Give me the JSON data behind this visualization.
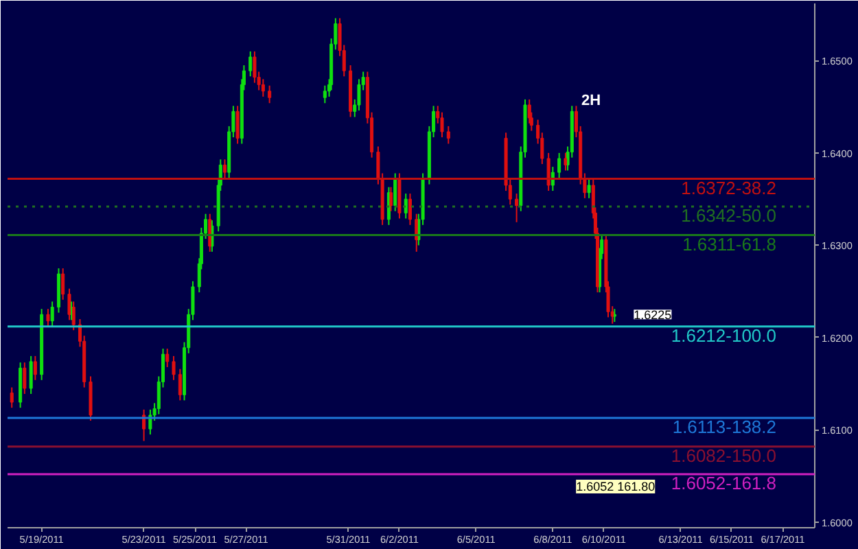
{
  "chart_data": {
    "type": "candlestick",
    "title": "2H",
    "x": [
      "2011-05-17T20:00",
      "2011-05-18T04:00",
      "2011-05-18T08:00",
      "2011-05-18T14:00",
      "2011-05-18T18:00",
      "2011-05-19T00:00",
      "2011-05-19T06:00",
      "2011-05-19T10:00",
      "2011-05-19T16:00",
      "2011-05-19T20:00",
      "2011-05-20T02:00",
      "2011-05-20T04:00",
      "2011-05-20T06:00",
      "2011-05-20T12:00",
      "2011-05-20T16:00",
      "2011-05-20T22:00",
      "2011-05-23T00:00",
      "2011-05-23T06:00",
      "2011-05-23T10:00",
      "2011-05-23T14:00",
      "2011-05-23T18:00",
      "2011-05-23T22:00",
      "2011-05-24T04:00",
      "2011-05-24T10:00",
      "2011-05-24T14:00",
      "2011-05-24T18:00",
      "2011-05-24T22:00",
      "2011-05-25T04:00",
      "2011-05-25T06:00",
      "2011-05-25T10:00",
      "2011-05-25T14:00",
      "2011-05-25T16:00",
      "2011-05-25T22:00",
      "2011-05-26T00:00",
      "2011-05-26T04:00",
      "2011-05-26T08:00",
      "2011-05-26T12:00",
      "2011-05-26T16:00",
      "2011-05-26T20:00",
      "2011-05-26T22:00",
      "2011-05-27T04:00",
      "2011-05-27T08:00",
      "2011-05-27T12:00",
      "2011-05-27T16:00",
      "2011-05-27T22:00",
      "2011-05-30T02:00",
      "2011-05-30T06:00",
      "2011-05-30T08:00",
      "2011-05-30T12:00",
      "2011-05-30T16:00",
      "2011-05-30T20:00",
      "2011-05-31T02:00",
      "2011-05-31T06:00",
      "2011-05-31T10:00",
      "2011-05-31T14:00",
      "2011-05-31T18:00",
      "2011-05-31T22:00",
      "2011-06-01T04:00",
      "2011-06-01T08:00",
      "2011-06-01T14:00",
      "2011-06-01T16:00",
      "2011-06-01T20:00",
      "2011-06-02T00:00",
      "2011-06-02T06:00",
      "2011-06-02T10:00",
      "2011-06-02T16:00",
      "2011-06-02T18:00",
      "2011-06-02T22:00",
      "2011-06-03T04:00",
      "2011-06-03T08:00",
      "2011-06-03T12:00",
      "2011-06-03T16:00",
      "2011-06-03T22:00",
      "2011-06-06T04:00",
      "2011-06-06T08:00",
      "2011-06-06T14:00",
      "2011-06-06T18:00",
      "2011-06-06T22:00",
      "2011-06-07T02:00",
      "2011-06-07T04:00",
      "2011-06-07T10:00",
      "2011-06-07T14:00",
      "2011-06-07T20:00",
      "2011-06-08T00:00",
      "2011-06-08T06:00",
      "2011-06-08T12:00",
      "2011-06-08T14:00",
      "2011-06-08T18:00",
      "2011-06-08T22:00",
      "2011-06-09T02:00",
      "2011-06-09T06:00",
      "2011-06-09T10:00",
      "2011-06-09T14:00",
      "2011-06-09T16:00",
      "2011-06-09T18:00",
      "2011-06-09T20:00",
      "2011-06-09T22:00",
      "2011-06-10T02:00",
      "2011-06-10T04:00",
      "2011-06-10T08:00",
      "2011-06-10T10:00"
    ],
    "ohlc": [
      [
        1.614,
        1.6146,
        1.6124,
        1.613
      ],
      [
        1.613,
        1.6173,
        1.6124,
        1.6167
      ],
      [
        1.6167,
        1.6173,
        1.6139,
        1.6145
      ],
      [
        1.6145,
        1.618,
        1.6139,
        1.6174
      ],
      [
        1.6174,
        1.618,
        1.6154,
        1.616
      ],
      [
        1.616,
        1.6231,
        1.6154,
        1.6225
      ],
      [
        1.6225,
        1.6231,
        1.6212,
        1.6218
      ],
      [
        1.6218,
        1.6239,
        1.6212,
        1.6233
      ],
      [
        1.6233,
        1.6275,
        1.6227,
        1.6269
      ],
      [
        1.6269,
        1.6275,
        1.6241,
        1.6247
      ],
      [
        1.6247,
        1.6253,
        1.6219,
        1.6225
      ],
      [
        1.6225,
        1.6239,
        1.6219,
        1.6233
      ],
      [
        1.6233,
        1.6239,
        1.6208,
        1.6214
      ],
      [
        1.6214,
        1.622,
        1.619,
        1.6196
      ],
      [
        1.6196,
        1.6202,
        1.6146,
        1.6152
      ],
      [
        1.6152,
        1.6158,
        1.611,
        1.6116
      ],
      [
        1.6116,
        1.6122,
        1.6088,
        1.6101
      ],
      [
        1.6101,
        1.6122,
        1.6095,
        1.6116
      ],
      [
        1.6116,
        1.6129,
        1.611,
        1.6123
      ],
      [
        1.6123,
        1.6158,
        1.6117,
        1.6152
      ],
      [
        1.6152,
        1.6188,
        1.6146,
        1.6182
      ],
      [
        1.6182,
        1.6188,
        1.6168,
        1.6174
      ],
      [
        1.6174,
        1.618,
        1.6154,
        1.616
      ],
      [
        1.616,
        1.6166,
        1.6132,
        1.6138
      ],
      [
        1.6138,
        1.6195,
        1.6132,
        1.6189
      ],
      [
        1.6189,
        1.6231,
        1.6183,
        1.6225
      ],
      [
        1.6225,
        1.6261,
        1.6219,
        1.6255
      ],
      [
        1.6255,
        1.6286,
        1.6249,
        1.628
      ],
      [
        1.628,
        1.6319,
        1.6274,
        1.6313
      ],
      [
        1.6313,
        1.6334,
        1.6307,
        1.6328
      ],
      [
        1.6328,
        1.6334,
        1.6293,
        1.6299
      ],
      [
        1.6299,
        1.6327,
        1.6293,
        1.6321
      ],
      [
        1.6321,
        1.6371,
        1.6315,
        1.6365
      ],
      [
        1.6365,
        1.6393,
        1.6359,
        1.6387
      ],
      [
        1.6387,
        1.6393,
        1.6373,
        1.6379
      ],
      [
        1.6379,
        1.6429,
        1.6373,
        1.6423
      ],
      [
        1.6423,
        1.6451,
        1.6417,
        1.6445
      ],
      [
        1.6445,
        1.6451,
        1.641,
        1.6416
      ],
      [
        1.6416,
        1.648,
        1.641,
        1.6474
      ],
      [
        1.6474,
        1.6495,
        1.6468,
        1.6489
      ],
      [
        1.6489,
        1.651,
        1.6483,
        1.6504
      ],
      [
        1.6504,
        1.651,
        1.6476,
        1.6482
      ],
      [
        1.6482,
        1.6488,
        1.6468,
        1.6474
      ],
      [
        1.6474,
        1.648,
        1.6461,
        1.6467
      ],
      [
        1.6467,
        1.6473,
        1.6454,
        1.646
      ],
      [
        1.646,
        1.6473,
        1.6454,
        1.6467
      ],
      [
        1.6467,
        1.648,
        1.6461,
        1.6474
      ],
      [
        1.6474,
        1.6524,
        1.6468,
        1.6518
      ],
      [
        1.6518,
        1.6546,
        1.6512,
        1.654
      ],
      [
        1.654,
        1.6546,
        1.6505,
        1.6511
      ],
      [
        1.6511,
        1.6517,
        1.6483,
        1.6489
      ],
      [
        1.6489,
        1.6495,
        1.6439,
        1.6445
      ],
      [
        1.6445,
        1.6458,
        1.6439,
        1.6452
      ],
      [
        1.6452,
        1.648,
        1.6446,
        1.6474
      ],
      [
        1.6474,
        1.6488,
        1.6468,
        1.6482
      ],
      [
        1.6482,
        1.6488,
        1.6432,
        1.6438
      ],
      [
        1.6438,
        1.6444,
        1.6395,
        1.6401
      ],
      [
        1.6401,
        1.6407,
        1.6366,
        1.6372
      ],
      [
        1.6372,
        1.6378,
        1.6322,
        1.6328
      ],
      [
        1.6328,
        1.6363,
        1.6322,
        1.6357
      ],
      [
        1.6357,
        1.6363,
        1.6337,
        1.6343
      ],
      [
        1.6343,
        1.6378,
        1.6337,
        1.6372
      ],
      [
        1.6372,
        1.6378,
        1.6329,
        1.6335
      ],
      [
        1.6335,
        1.6356,
        1.6329,
        1.635
      ],
      [
        1.635,
        1.6356,
        1.6322,
        1.6328
      ],
      [
        1.6328,
        1.6334,
        1.6293,
        1.6306
      ],
      [
        1.6306,
        1.6334,
        1.63,
        1.6328
      ],
      [
        1.6328,
        1.6378,
        1.6322,
        1.6372
      ],
      [
        1.6372,
        1.6429,
        1.6366,
        1.6423
      ],
      [
        1.6423,
        1.6451,
        1.6417,
        1.6445
      ],
      [
        1.6445,
        1.6451,
        1.6432,
        1.6438
      ],
      [
        1.6438,
        1.6444,
        1.6417,
        1.6423
      ],
      [
        1.6423,
        1.6429,
        1.641,
        1.6416
      ],
      [
        1.6416,
        1.6422,
        1.6359,
        1.6365
      ],
      [
        1.6365,
        1.6371,
        1.6344,
        1.635
      ],
      [
        1.635,
        1.6356,
        1.6325,
        1.6343
      ],
      [
        1.6343,
        1.6407,
        1.6337,
        1.6401
      ],
      [
        1.6401,
        1.6458,
        1.6395,
        1.6452
      ],
      [
        1.6452,
        1.6458,
        1.6432,
        1.6438
      ],
      [
        1.6438,
        1.6444,
        1.6424,
        1.643
      ],
      [
        1.643,
        1.6436,
        1.641,
        1.6416
      ],
      [
        1.6416,
        1.6422,
        1.6388,
        1.6394
      ],
      [
        1.6394,
        1.64,
        1.6359,
        1.6365
      ],
      [
        1.6365,
        1.6385,
        1.6359,
        1.6379
      ],
      [
        1.6379,
        1.64,
        1.6373,
        1.6394
      ],
      [
        1.6394,
        1.64,
        1.6381,
        1.6387
      ],
      [
        1.6387,
        1.6407,
        1.6381,
        1.6401
      ],
      [
        1.6401,
        1.6451,
        1.6395,
        1.6445
      ],
      [
        1.6445,
        1.6451,
        1.6417,
        1.6423
      ],
      [
        1.6423,
        1.6429,
        1.6366,
        1.6372
      ],
      [
        1.6372,
        1.6378,
        1.6351,
        1.6357
      ],
      [
        1.6357,
        1.6371,
        1.6351,
        1.6365
      ],
      [
        1.6365,
        1.6371,
        1.6329,
        1.6335
      ],
      [
        1.6335,
        1.6341,
        1.6307,
        1.6313
      ],
      [
        1.6313,
        1.6319,
        1.6249,
        1.6255
      ],
      [
        1.6255,
        1.6297,
        1.6249,
        1.6291
      ],
      [
        1.6291,
        1.6312,
        1.6285,
        1.6306
      ],
      [
        1.6306,
        1.6312,
        1.6249,
        1.6255
      ],
      [
        1.6255,
        1.6261,
        1.6222,
        1.6228
      ],
      [
        1.6228,
        1.6234,
        1.6215,
        1.6223
      ],
      [
        1.6223,
        1.6231,
        1.6217,
        1.6225
      ]
    ],
    "xlim": [
      "2011-05-17T16:00",
      "2011-06-18T06:00"
    ],
    "ylim": [
      1.5994,
      1.6562
    ],
    "xticks": [
      {
        "value": "2011-05-19",
        "label": "5/19/2011"
      },
      {
        "value": "2011-05-23",
        "label": "5/23/2011"
      },
      {
        "value": "2011-05-25",
        "label": "5/25/2011"
      },
      {
        "value": "2011-05-27",
        "label": "5/27/2011"
      },
      {
        "value": "2011-05-31",
        "label": "5/31/2011"
      },
      {
        "value": "2011-06-02",
        "label": "6/2/2011"
      },
      {
        "value": "2011-06-05",
        "label": "6/5/2011"
      },
      {
        "value": "2011-06-08",
        "label": "6/8/2011"
      },
      {
        "value": "2011-06-10",
        "label": "6/10/2011"
      },
      {
        "value": "2011-06-13",
        "label": "6/13/2011"
      },
      {
        "value": "2011-06-15",
        "label": "6/15/2011"
      },
      {
        "value": "2011-06-17",
        "label": "6/17/2011"
      }
    ],
    "yticks": [
      {
        "value": 1.6,
        "label": "1.6000"
      },
      {
        "value": 1.61,
        "label": "1.6100"
      },
      {
        "value": 1.62,
        "label": "1.6200"
      },
      {
        "value": 1.63,
        "label": "1.6300"
      },
      {
        "value": 1.64,
        "label": "1.6400"
      },
      {
        "value": 1.65,
        "label": "1.6500"
      }
    ],
    "ref_lines": [
      {
        "axis": "y",
        "value": 1.6372,
        "label": "1.6372-38.2",
        "color": "#c01010"
      },
      {
        "axis": "y",
        "value": 1.6342,
        "label": "1.6342-50.0",
        "color": "#207020",
        "line_style": "dotted"
      },
      {
        "axis": "y",
        "value": 1.6311,
        "label": "1.6311-61.8",
        "color": "#1a7a1a"
      },
      {
        "axis": "y",
        "value": 1.6212,
        "label": "1.6212-100.0",
        "color": "#20c8c8"
      },
      {
        "axis": "y",
        "value": 1.6113,
        "label": "1.6113-138.2",
        "color": "#1e78d8"
      },
      {
        "axis": "y",
        "value": 1.6082,
        "label": "1.6082-150.0",
        "color": "#8a1030"
      },
      {
        "axis": "y",
        "value": 1.6052,
        "label": "1.6052-161.8",
        "color": "#d020c0"
      }
    ],
    "annotations": [
      {
        "text": "1.6225",
        "x": "2011-06-10T10:00",
        "y": 1.6225
      },
      {
        "text": "1.6052 161.80",
        "x": "2011-06-12T00:00",
        "y": 1.6052
      }
    ],
    "grid": false
  }
}
